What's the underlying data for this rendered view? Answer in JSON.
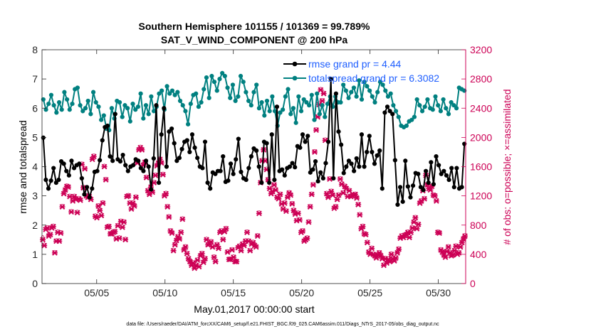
{
  "chart_data": {
    "type": "line",
    "title": "Southern Hemisphere 101155 / 101369 = 99.789%",
    "subtitle": "SAT_V_WIND_COMPONENT @ 200 hPa",
    "xlabel": "May.01,2017 00:00:00 start",
    "ylabel_left": "rmse and totalspread",
    "ylabel_right": "# of obs: o=possible; ×=assimilated",
    "footer": "data file: /Users/raeder/DAI/ATM_forcXX/CAM6_setup/f.e21.FHIST_BGC.f09_025.CAM6assim.011/Diags_NTrS_2017-05/obs_diag_output.nc",
    "x_tick_labels": [
      "05/05",
      "05/10",
      "05/15",
      "05/20",
      "05/25",
      "05/30"
    ],
    "x_tick_days": [
      5,
      10,
      15,
      20,
      25,
      30
    ],
    "xlim_days": [
      1,
      32
    ],
    "left_ylim": [
      0,
      8
    ],
    "left_ticks": [
      "0",
      "1",
      "2",
      "3",
      "4",
      "5",
      "6",
      "7",
      "8"
    ],
    "right_ylim": [
      0,
      3200
    ],
    "right_ticks": [
      "0",
      "400",
      "800",
      "1200",
      "1600",
      "2000",
      "2400",
      "2800",
      "3200"
    ],
    "colors": {
      "rmse": "#000000",
      "spread": "#008080",
      "obs": "#cc0055",
      "legend_text": "#1f5fff"
    },
    "legend": [
      {
        "label": "rmse grand pr = 4.44",
        "color": "#000000"
      },
      {
        "label": "totalspread grand pr = 6.3082",
        "color": "#008080"
      }
    ],
    "series": [
      {
        "name": "rmse",
        "axis": "left",
        "values": [
          4.99,
          3.55,
          3.25,
          3.52,
          3.95,
          3.45,
          3.55,
          4.18,
          4.1,
          3.85,
          3.7,
          4.2,
          3.95,
          4.05,
          4.1,
          3.6,
          3.05,
          3.3,
          2.95,
          3.25,
          3.82,
          3.85,
          4.22,
          4.9,
          5.35,
          5.4,
          4.35,
          4.2,
          5.8,
          4.25,
          4.18,
          4.4,
          4.05,
          3.85,
          4.0,
          4.05,
          4.25,
          4.2,
          3.95,
          3.85,
          4.2,
          4.0,
          3.22,
          4.28,
          6.1,
          3.45,
          5.1,
          6.0,
          4.0,
          5.2,
          5.3,
          4.8,
          4.2,
          4.3,
          4.6,
          4.85,
          4.9,
          4.5,
          5.1,
          4.65,
          4.3,
          4.0,
          3.95,
          4.85,
          3.45,
          3.25,
          3.8,
          3.75,
          3.85,
          3.85,
          4.35,
          3.48,
          3.52,
          4.1,
          3.75,
          4.25,
          4.95,
          3.82,
          3.6,
          3.55,
          3.95,
          4.35,
          4.62,
          4.55,
          4.0,
          3.45,
          4.85,
          4.8,
          3.45,
          5.1,
          3.55,
          6.05,
          3.85,
          3.9,
          3.7,
          3.95,
          4.0,
          4.12,
          3.98,
          4.7,
          4.65,
          5.1,
          4.85,
          5.05,
          3.8,
          3.9,
          4.18,
          3.5,
          3.8,
          3.6,
          4.12,
          4.85,
          7.0,
          3.6,
          6.5,
          5.2,
          4.75,
          3.78,
          4.0,
          4.2,
          4.1,
          3.85,
          4.28,
          4.0,
          5.1,
          4.0,
          4.5,
          5.05,
          4.5,
          4.1,
          4.38,
          4.55,
          3.25,
          5.85,
          6.05,
          5.9,
          5.8,
          4.22,
          2.7,
          3.3,
          2.8,
          4.2,
          3.32,
          2.95,
          3.35,
          3.78,
          3.75,
          3.3,
          3.2,
          3.85,
          3.45,
          4.15,
          3.4,
          4.35,
          4.05,
          3.75,
          3.85,
          3.7,
          3.55,
          3.95,
          3.3,
          3.95,
          3.25,
          3.3,
          4.78
        ]
      },
      {
        "name": "totalspread",
        "axis": "left",
        "values": [
          6.3,
          5.95,
          6.15,
          6.45,
          6.1,
          5.85,
          6.2,
          5.95,
          6.55,
          6.3,
          5.95,
          6.15,
          6.65,
          6.7,
          6.1,
          5.9,
          6.0,
          6.25,
          5.8,
          6.55,
          6.2,
          6.05,
          5.6,
          5.75,
          5.3,
          5.25,
          6.0,
          5.65,
          6.25,
          6.2,
          5.7,
          6.1,
          6.0,
          5.55,
          6.15,
          5.95,
          6.05,
          6.5,
          5.65,
          6.1,
          5.8,
          6.4,
          5.9,
          6.05,
          6.5,
          6.6,
          5.95,
          6.75,
          6.5,
          6.6,
          6.45,
          6.55,
          6.25,
          6.1,
          5.9,
          5.45,
          6.15,
          6.45,
          6.5,
          6.05,
          6.2,
          6.65,
          7.05,
          6.35,
          7.1,
          6.9,
          6.6,
          7.0,
          7.2,
          7.1,
          6.7,
          6.35,
          6.8,
          6.25,
          6.4,
          7.1,
          6.9,
          6.55,
          6.25,
          6.1,
          6.55,
          6.8,
          6.0,
          6.2,
          5.75,
          6.25,
          5.9,
          6.4,
          5.9,
          5.4,
          5.85,
          5.95,
          6.4,
          6.65,
          5.8,
          6.0,
          5.5,
          6.4,
          5.9,
          6.3,
          6.2,
          6.1,
          6.45,
          5.6,
          6.5,
          5.8,
          6.1,
          5.7,
          6.15,
          6.4,
          6.05,
          6.4,
          6.2,
          6.2,
          6.8,
          6.6,
          6.35,
          6.55,
          6.7,
          6.4,
          6.95,
          6.3,
          6.9,
          6.75,
          6.6,
          6.4,
          6.2,
          6.55,
          6.9,
          6.8,
          6.6,
          6.4,
          6.5,
          6.1,
          5.9,
          5.7,
          5.4,
          5.35,
          5.4,
          5.55,
          5.6,
          5.7,
          6.3,
          6.1,
          5.9,
          6.05,
          6.3,
          6.0,
          5.95,
          6.4,
          6.1,
          5.9,
          6.3,
          6.0,
          5.8,
          6.2,
          6.1,
          6.0,
          6.7,
          6.65,
          6.6
        ]
      },
      {
        "name": "obs_assimilated",
        "axis": "right",
        "values": [
          600,
          520,
          740,
          760,
          650,
          670,
          760,
          780,
          420,
          580,
          700,
          580,
          690,
          1050,
          1230,
          1280,
          1330,
          1320,
          1190,
          980,
          1130,
          1190,
          1150,
          970,
          1160,
          1140,
          1630,
          1310,
          1570,
          1200,
          1180,
          1190,
          1150,
          1700,
          1740,
          920,
          900,
          1060,
          1000,
          930,
          1100,
          1600,
          1420,
          770,
          780,
          680,
          680,
          700,
          710,
          610,
          790,
          620,
          850,
          770,
          840,
          600,
          1190,
          1200,
          1100,
          1020,
          1100,
          1060,
          1180,
          1650,
          1830,
          1860,
          1830,
          1620,
          1660,
          1450,
          1270,
          1220,
          1320,
          1250,
          1380,
          1480,
          1610,
          1650,
          1700,
          1650,
          1490,
          1200,
          1230,
          1050,
          910,
          720,
          690,
          450,
          530,
          590,
          640,
          610,
          700,
          880,
          460,
          500,
          410,
          340,
          300,
          250,
          280,
          210,
          250,
          320,
          230,
          380,
          410,
          290,
          340,
          600,
          530,
          540,
          570,
          500,
          360,
          300,
          530,
          480,
          700,
          720,
          600,
          710,
          750,
          430,
          330,
          330,
          460,
          360,
          300,
          300,
          490,
          510,
          450,
          540,
          520,
          580,
          700,
          580,
          450,
          540,
          560,
          520,
          500,
          650,
          960,
          1380,
          1680,
          1830,
          1680,
          1560,
          1420,
          1300,
          1230,
          1260,
          1350,
          1280,
          1180,
          1160,
          1220,
          1090,
          1020,
          1100,
          990,
          1180,
          1240,
          1210,
          1090,
          1000,
          950,
          860,
          960,
          870,
          700,
          720,
          580,
          600,
          620,
          840,
          1050,
          1220,
          1350,
          1800,
          2100,
          2280,
          2450,
          2650,
          2500,
          2600,
          1960,
          1230,
          1180,
          1430,
          1260,
          1210,
          1030,
          1050,
          1150,
          1210,
          1430,
          1360,
          1240,
          1330,
          1300,
          1190,
          1270,
          1190,
          1200,
          1210,
          1220,
          1170,
          1080,
          940,
          750,
          780,
          680,
          670,
          560,
          430,
          400,
          480,
          400,
          380,
          350,
          390,
          420,
          380,
          340,
          250,
          340,
          280,
          330,
          300,
          400,
          340,
          310,
          350,
          420,
          470,
          620,
          650,
          630,
          660,
          670,
          700,
          630,
          700,
          760,
          840,
          900,
          750,
          810,
          1100,
          1130,
          1270,
          1160,
          1480,
          1350,
          1300,
          1280,
          1330,
          1210,
          1200,
          1130,
          700,
          690,
          460,
          430,
          390,
          360,
          440,
          500,
          420,
          380,
          390,
          450,
          510,
          400,
          420,
          500,
          560,
          610,
          650
        ]
      },
      {
        "name": "obs_possible",
        "axis": "right",
        "values": [
          640,
          540,
          760,
          780,
          690,
          690,
          780,
          800,
          440,
          600,
          720,
          600,
          710,
          1070,
          1250,
          1300,
          1350,
          1340,
          1210,
          1000,
          1150,
          1210,
          1170,
          990,
          1180,
          1160,
          1650,
          1330,
          1590,
          1220,
          1200,
          1210,
          1170,
          1720,
          1760,
          940,
          920,
          1080,
          1020,
          950,
          1120,
          1620,
          1440,
          790,
          800,
          700,
          700,
          720,
          730,
          630,
          810,
          640,
          870,
          790,
          860,
          620,
          1210,
          1220,
          1120,
          1040,
          1120,
          1080,
          1200,
          1670,
          1850,
          1880,
          1850,
          1640,
          1680,
          1470,
          1290,
          1240,
          1340,
          1270,
          1400,
          1500,
          1630,
          1670,
          1720,
          1670,
          1510,
          1220,
          1250,
          1070,
          930,
          740,
          710,
          470,
          550,
          610,
          660,
          630,
          720,
          900,
          480,
          520,
          430,
          360,
          320,
          270,
          300,
          230,
          270,
          340,
          250,
          400,
          430,
          310,
          360,
          620,
          550,
          560,
          590,
          520,
          380,
          320,
          550,
          500,
          720,
          740,
          620,
          730,
          770,
          450,
          350,
          350,
          480,
          380,
          320,
          320,
          510,
          530,
          470,
          560,
          540,
          600,
          720,
          600,
          470,
          560,
          580,
          540,
          520,
          670,
          980,
          1400,
          1700,
          1850,
          1700,
          1580,
          1440,
          1320,
          1250,
          1280,
          1370,
          1300,
          1200,
          1180,
          1240,
          1110,
          1040,
          1120,
          1010,
          1200,
          1260,
          1230,
          1110,
          1020,
          970,
          880,
          980,
          890,
          720,
          740,
          600,
          620,
          640,
          860,
          1070,
          1240,
          1370,
          1820,
          2120,
          2300,
          2470,
          2670,
          2520,
          2620,
          1980,
          1250,
          1200,
          1450,
          1280,
          1230,
          1050,
          1070,
          1170,
          1230,
          1450,
          1380,
          1260,
          1350,
          1320,
          1210,
          1290,
          1210,
          1220,
          1230,
          1240,
          1190,
          1100,
          960,
          770,
          800,
          700,
          690,
          580,
          450,
          420,
          500,
          420,
          400,
          370,
          410,
          440,
          400,
          360,
          270,
          360,
          300,
          350,
          320,
          420,
          360,
          330,
          370,
          440,
          490,
          640,
          670,
          650,
          680,
          690,
          720,
          650,
          720,
          780,
          860,
          920,
          770,
          830,
          1120,
          1150,
          1290,
          1180,
          1500,
          1370,
          1320,
          1300,
          1350,
          1230,
          1220,
          1150,
          720,
          710,
          480,
          450,
          410,
          380,
          460,
          520,
          440,
          400,
          410,
          470,
          530,
          420,
          440,
          520,
          580,
          630,
          670
        ]
      }
    ]
  }
}
